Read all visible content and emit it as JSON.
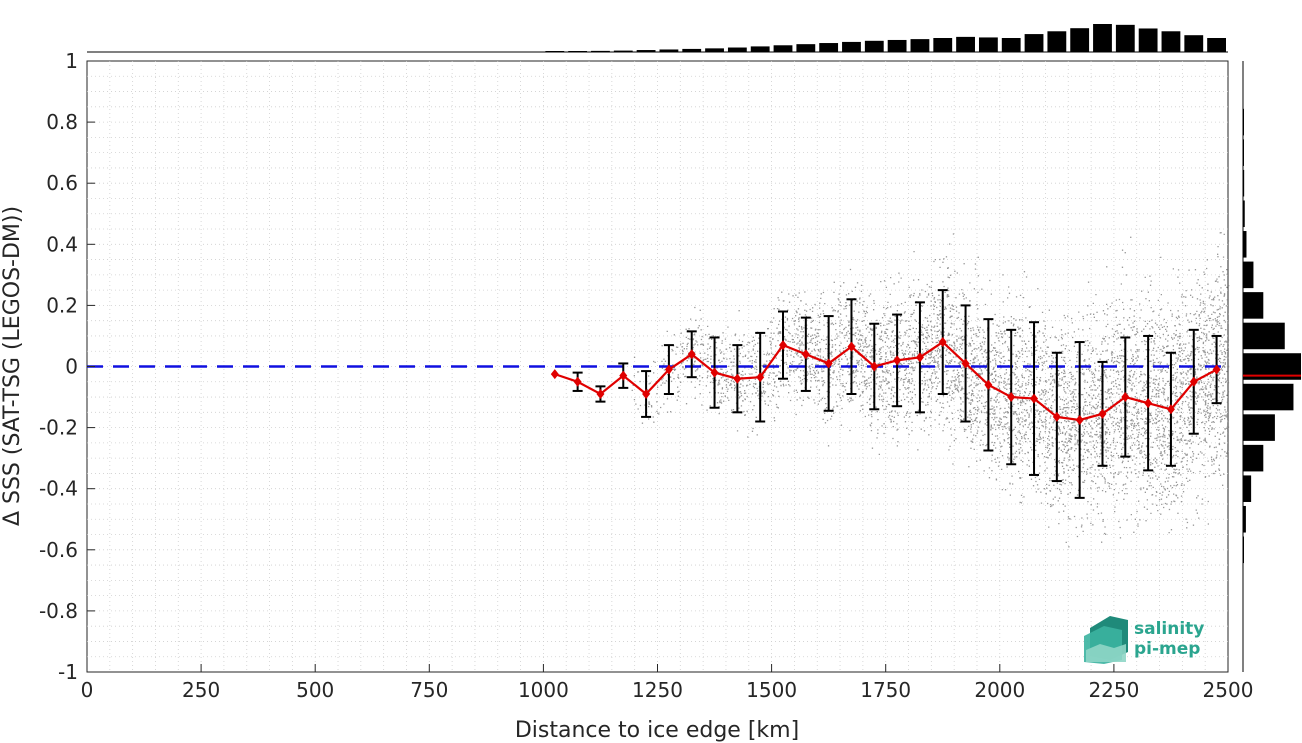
{
  "chart_data": {
    "type": "scatter",
    "xlabel": "Distance to ice edge [km]",
    "ylabel": "Δ SSS (SAT-TSG (LEGOS-DM))",
    "xlim": [
      0,
      2500
    ],
    "ylim": [
      -1,
      1
    ],
    "xticks": [
      0,
      250,
      500,
      750,
      1000,
      1250,
      1500,
      1750,
      2000,
      2250,
      2500
    ],
    "yticks": [
      -1,
      -0.8,
      -0.6,
      -0.4,
      -0.2,
      0,
      0.2,
      0.4,
      0.6,
      0.8,
      1
    ],
    "xtick_labels": [
      "0",
      "250",
      "500",
      "750",
      "1000",
      "1250",
      "1500",
      "1750",
      "2000",
      "2250",
      "2500"
    ],
    "ytick_labels": [
      "-1",
      "-0.8",
      "-0.6",
      "-0.4",
      "-0.2",
      "0",
      "0.2",
      "0.4",
      "0.6",
      "0.8",
      "1"
    ],
    "grid": true,
    "reference_line": {
      "y": 0,
      "color": "#1010e0",
      "style": "dashed"
    },
    "scatter_color": "#808080",
    "series": [
      {
        "color": "#e00000",
        "marker": "diamond",
        "x": [
          1025,
          1075,
          1125,
          1175,
          1225,
          1275,
          1325,
          1375,
          1425,
          1475,
          1525,
          1575,
          1625,
          1675,
          1725,
          1775,
          1825,
          1875,
          1925,
          1975,
          2025,
          2075,
          2125,
          2175,
          2225,
          2275,
          2325,
          2375,
          2425,
          2475
        ],
        "y": [
          -0.025,
          -0.05,
          -0.09,
          -0.03,
          -0.09,
          -0.01,
          0.04,
          -0.02,
          -0.04,
          -0.035,
          0.07,
          0.04,
          0.01,
          0.065,
          0.0,
          0.02,
          0.03,
          0.08,
          0.01,
          -0.06,
          -0.1,
          -0.105,
          -0.165,
          -0.175,
          -0.155,
          -0.1,
          -0.12,
          -0.14,
          -0.05,
          -0.01
        ],
        "error": [
          0.0,
          0.03,
          0.025,
          0.04,
          0.075,
          0.08,
          0.075,
          0.115,
          0.11,
          0.145,
          0.11,
          0.12,
          0.155,
          0.155,
          0.14,
          0.15,
          0.18,
          0.17,
          0.19,
          0.215,
          0.22,
          0.25,
          0.21,
          0.255,
          0.17,
          0.195,
          0.22,
          0.185,
          0.17,
          0.11
        ]
      }
    ],
    "top_histogram": {
      "bins_x": [
        1050,
        1100,
        1150,
        1200,
        1250,
        1300,
        1350,
        1400,
        1450,
        1500,
        1550,
        1600,
        1650,
        1700,
        1750,
        1800,
        1850,
        1900,
        1950,
        2000,
        2050,
        2100,
        2150,
        2200,
        2250,
        2300,
        2350,
        2400,
        2450,
        2500
      ],
      "counts": [
        0.02,
        0.03,
        0.04,
        0.05,
        0.07,
        0.09,
        0.11,
        0.13,
        0.16,
        0.2,
        0.24,
        0.28,
        0.32,
        0.36,
        0.4,
        0.43,
        0.46,
        0.5,
        0.54,
        0.52,
        0.5,
        0.64,
        0.74,
        0.85,
        1.0,
        0.97,
        0.84,
        0.74,
        0.6,
        0.5
      ]
    },
    "right_histogram": {
      "bins_y": [
        -0.6,
        -0.5,
        -0.4,
        -0.3,
        -0.2,
        -0.1,
        0.0,
        0.1,
        0.2,
        0.3,
        0.4,
        0.5,
        0.6,
        0.7,
        0.8
      ],
      "counts": [
        0.01,
        0.05,
        0.14,
        0.35,
        0.55,
        0.87,
        1.0,
        0.72,
        0.35,
        0.18,
        0.06,
        0.03,
        0.02,
        0.01,
        0.01
      ],
      "mean_line": {
        "y": -0.03,
        "color": "#e00000"
      }
    }
  },
  "logo": {
    "line1": "salinity",
    "line2": "pi-mep"
  }
}
